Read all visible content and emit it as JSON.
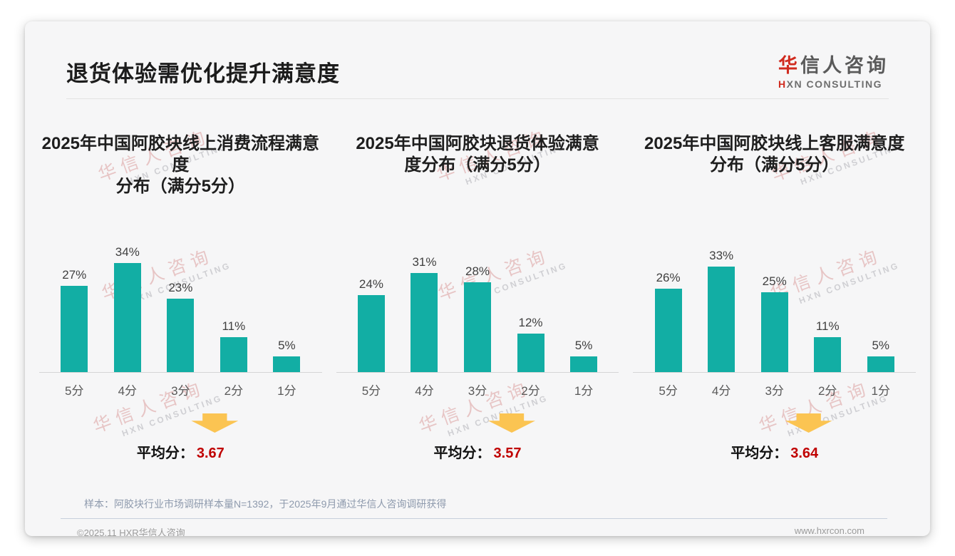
{
  "header": {
    "title": "退货体验需优化提升满意度"
  },
  "logo": {
    "cn_first": "华",
    "cn_rest": "信人咨询",
    "en_first": "H",
    "en_rest": "XN CONSULTING"
  },
  "watermark": {
    "line1": "华信人咨询",
    "line2": "HXN CONSULTING"
  },
  "chart_data": [
    {
      "type": "bar",
      "title": "2025年中国阿胶块线上消费流程满意度分布（满分5分）",
      "title_lines": [
        "2025年中国阿胶块线上消费流程满意度",
        "分布（满分5分）"
      ],
      "categories": [
        "5分",
        "4分",
        "3分",
        "2分",
        "1分"
      ],
      "values": [
        27,
        34,
        23,
        11,
        5
      ],
      "unit": "%",
      "ylim": [
        0,
        40
      ],
      "grid": false,
      "avg_label": "平均分：",
      "avg_value": "3.67"
    },
    {
      "type": "bar",
      "title": "2025年中国阿胶块退货体验满意度分布（满分5分）",
      "title_lines": [
        "2025年中国阿胶块退货体验满意",
        "度分布（满分5分）"
      ],
      "categories": [
        "5分",
        "4分",
        "3分",
        "2分",
        "1分"
      ],
      "values": [
        24,
        31,
        28,
        12,
        5
      ],
      "unit": "%",
      "ylim": [
        0,
        40
      ],
      "grid": false,
      "avg_label": "平均分：",
      "avg_value": "3.57"
    },
    {
      "type": "bar",
      "title": "2025年中国阿胶块线上客服满意度分布（满分5分）",
      "title_lines": [
        "2025年中国阿胶块线上客服满意度",
        "分布（满分5分）"
      ],
      "categories": [
        "5分",
        "4分",
        "3分",
        "2分",
        "1分"
      ],
      "values": [
        26,
        33,
        25,
        11,
        5
      ],
      "unit": "%",
      "ylim": [
        0,
        40
      ],
      "grid": false,
      "avg_label": "平均分：",
      "avg_value": "3.64"
    }
  ],
  "colors": {
    "bar_teal": "#12aea4",
    "accent_red": "#c00000",
    "logo_red": "#d02b1f",
    "arrow_yellow": "#fbc452"
  },
  "footer": {
    "note": "样本：阿胶块行业市场调研样本量N=1392，于2025年9月通过华信人咨询调研获得",
    "copyright": "©2025.11 HXR华信人咨询",
    "website": "www.hxrcon.com"
  }
}
